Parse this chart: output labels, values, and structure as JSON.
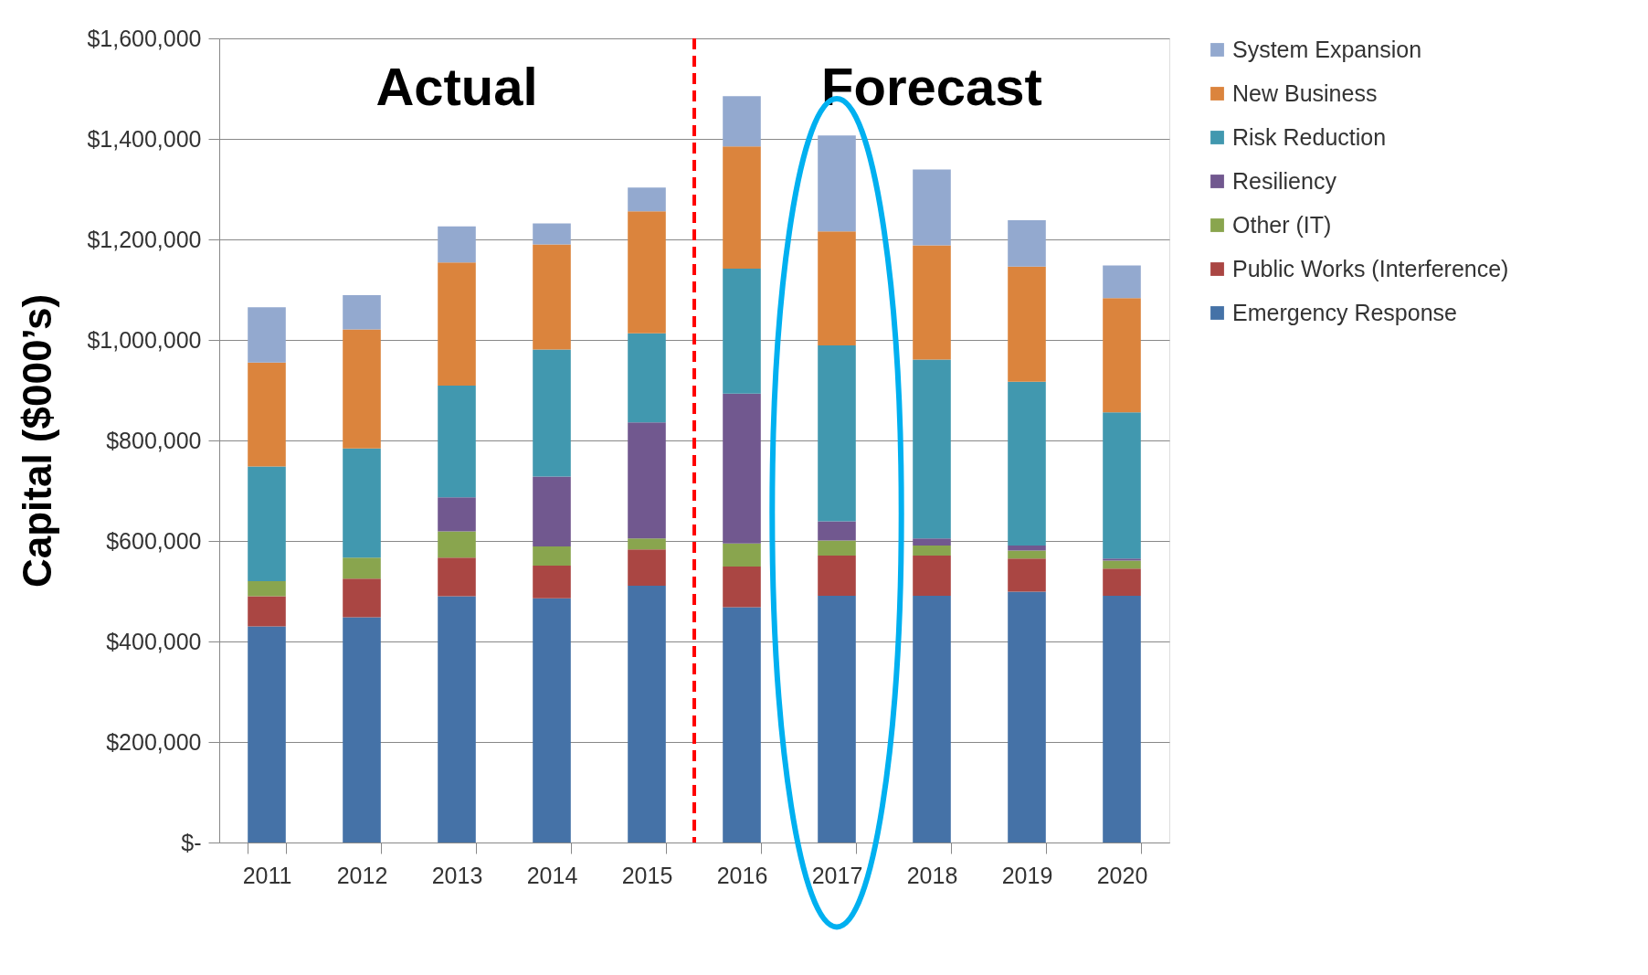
{
  "chart_data": {
    "type": "bar",
    "stacked": true,
    "ylabel": "Capital ($000’s)",
    "categories": [
      "2011",
      "2012",
      "2013",
      "2014",
      "2015",
      "2016",
      "2017",
      "2018",
      "2019",
      "2020"
    ],
    "series": [
      {
        "name": "Emergency Response",
        "color": "#4572a7",
        "values": [
          430000,
          448000,
          490000,
          486000,
          511000,
          468000,
          491000,
          491000,
          499000,
          491000
        ]
      },
      {
        "name": "Public Works (Interference)",
        "color": "#aa4643",
        "values": [
          60000,
          77000,
          77000,
          65000,
          72000,
          81000,
          80000,
          80000,
          66000,
          54000
        ]
      },
      {
        "name": "Other (IT)",
        "color": "#89a54e",
        "values": [
          30000,
          42000,
          52000,
          38000,
          22000,
          46000,
          30000,
          20000,
          16000,
          16000
        ]
      },
      {
        "name": "Resiliency",
        "color": "#71588f",
        "values": [
          0,
          0,
          68000,
          139000,
          231000,
          298000,
          38000,
          14000,
          10000,
          4000
        ]
      },
      {
        "name": "Risk Reduction",
        "color": "#4198af",
        "values": [
          228000,
          217000,
          222000,
          253000,
          177000,
          249000,
          350000,
          356000,
          326000,
          291000
        ]
      },
      {
        "name": "New Business",
        "color": "#db843d",
        "values": [
          207000,
          237000,
          245000,
          209000,
          243000,
          243000,
          227000,
          227000,
          229000,
          227000
        ]
      },
      {
        "name": "System Expansion",
        "color": "#93a9cf",
        "values": [
          110000,
          68000,
          72000,
          42000,
          47000,
          100000,
          191000,
          151000,
          92000,
          65000
        ]
      }
    ],
    "ylim": [
      0,
      1600000
    ],
    "yticks": [
      {
        "value": 0,
        "label": "$-"
      },
      {
        "value": 200000,
        "label": "$200,000"
      },
      {
        "value": 400000,
        "label": "$400,000"
      },
      {
        "value": 600000,
        "label": "$600,000"
      },
      {
        "value": 800000,
        "label": "$800,000"
      },
      {
        "value": 1000000,
        "label": "$1,000,000"
      },
      {
        "value": 1200000,
        "label": "$1,200,000"
      },
      {
        "value": 1400000,
        "label": "$1,400,000"
      },
      {
        "value": 1600000,
        "label": "$1,600,000"
      }
    ],
    "grid": "y",
    "legend": "right",
    "ref_lines": [
      {
        "axis": "x",
        "value": "2016",
        "color": "#ff0000",
        "line_style": "dashed"
      }
    ],
    "annotations": [
      "Actual",
      "Forecast"
    ]
  }
}
